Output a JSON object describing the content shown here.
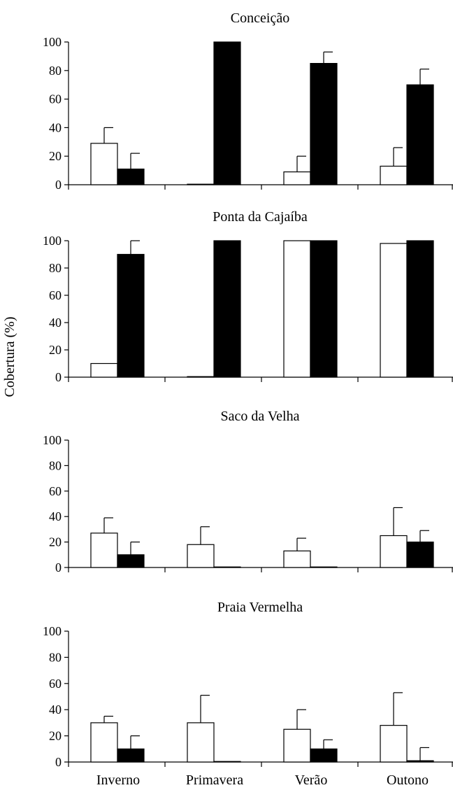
{
  "ylabel": "Cobertura (%)",
  "categories": [
    "Inverno",
    "Primavera",
    "Verão",
    "Outono"
  ],
  "colors": {
    "series_a_fill": "#ffffff",
    "series_b_fill": "#000000",
    "stroke": "#000000"
  },
  "chart_data": [
    {
      "type": "bar",
      "title": "Conceição",
      "categories": [
        "Inverno",
        "Primavera",
        "Verão",
        "Outono"
      ],
      "ylim": [
        0,
        100
      ],
      "yticks": [
        "0",
        "20",
        "40",
        "60",
        "80",
        "100"
      ],
      "series": [
        {
          "values": [
            29,
            0,
            9,
            13
          ],
          "errors": [
            11,
            0,
            11,
            13
          ]
        },
        {
          "values": [
            11,
            100,
            85,
            70
          ],
          "errors": [
            11,
            0,
            8,
            11
          ]
        }
      ]
    },
    {
      "type": "bar",
      "title": "Ponta da Cajaíba",
      "categories": [
        "Inverno",
        "Primavera",
        "Verão",
        "Outono"
      ],
      "ylim": [
        0,
        100
      ],
      "yticks": [
        "0",
        "20",
        "40",
        "60",
        "80",
        "100"
      ],
      "series": [
        {
          "values": [
            10,
            0,
            100,
            98
          ],
          "errors": [
            0,
            0,
            0,
            0
          ]
        },
        {
          "values": [
            90,
            100,
            100,
            100
          ],
          "errors": [
            10,
            0,
            0,
            0
          ]
        }
      ]
    },
    {
      "type": "bar",
      "title": "Saco da Velha",
      "categories": [
        "Inverno",
        "Primavera",
        "Verão",
        "Outono"
      ],
      "ylim": [
        0,
        100
      ],
      "yticks": [
        "0",
        "20",
        "40",
        "60",
        "80",
        "100"
      ],
      "series": [
        {
          "values": [
            27,
            18,
            13,
            25
          ],
          "errors": [
            12,
            14,
            10,
            22
          ]
        },
        {
          "values": [
            10,
            0,
            0,
            20
          ],
          "errors": [
            10,
            0,
            0,
            9
          ]
        }
      ]
    },
    {
      "type": "bar",
      "title": "Praia Vermelha",
      "categories": [
        "Inverno",
        "Primavera",
        "Verão",
        "Outono"
      ],
      "ylim": [
        0,
        100
      ],
      "yticks": [
        "0",
        "20",
        "40",
        "60",
        "80",
        "100"
      ],
      "series": [
        {
          "values": [
            30,
            30,
            25,
            28
          ],
          "errors": [
            5,
            21,
            15,
            25
          ]
        },
        {
          "values": [
            10,
            0,
            10,
            1
          ],
          "errors": [
            10,
            0,
            7,
            10
          ]
        }
      ]
    }
  ]
}
